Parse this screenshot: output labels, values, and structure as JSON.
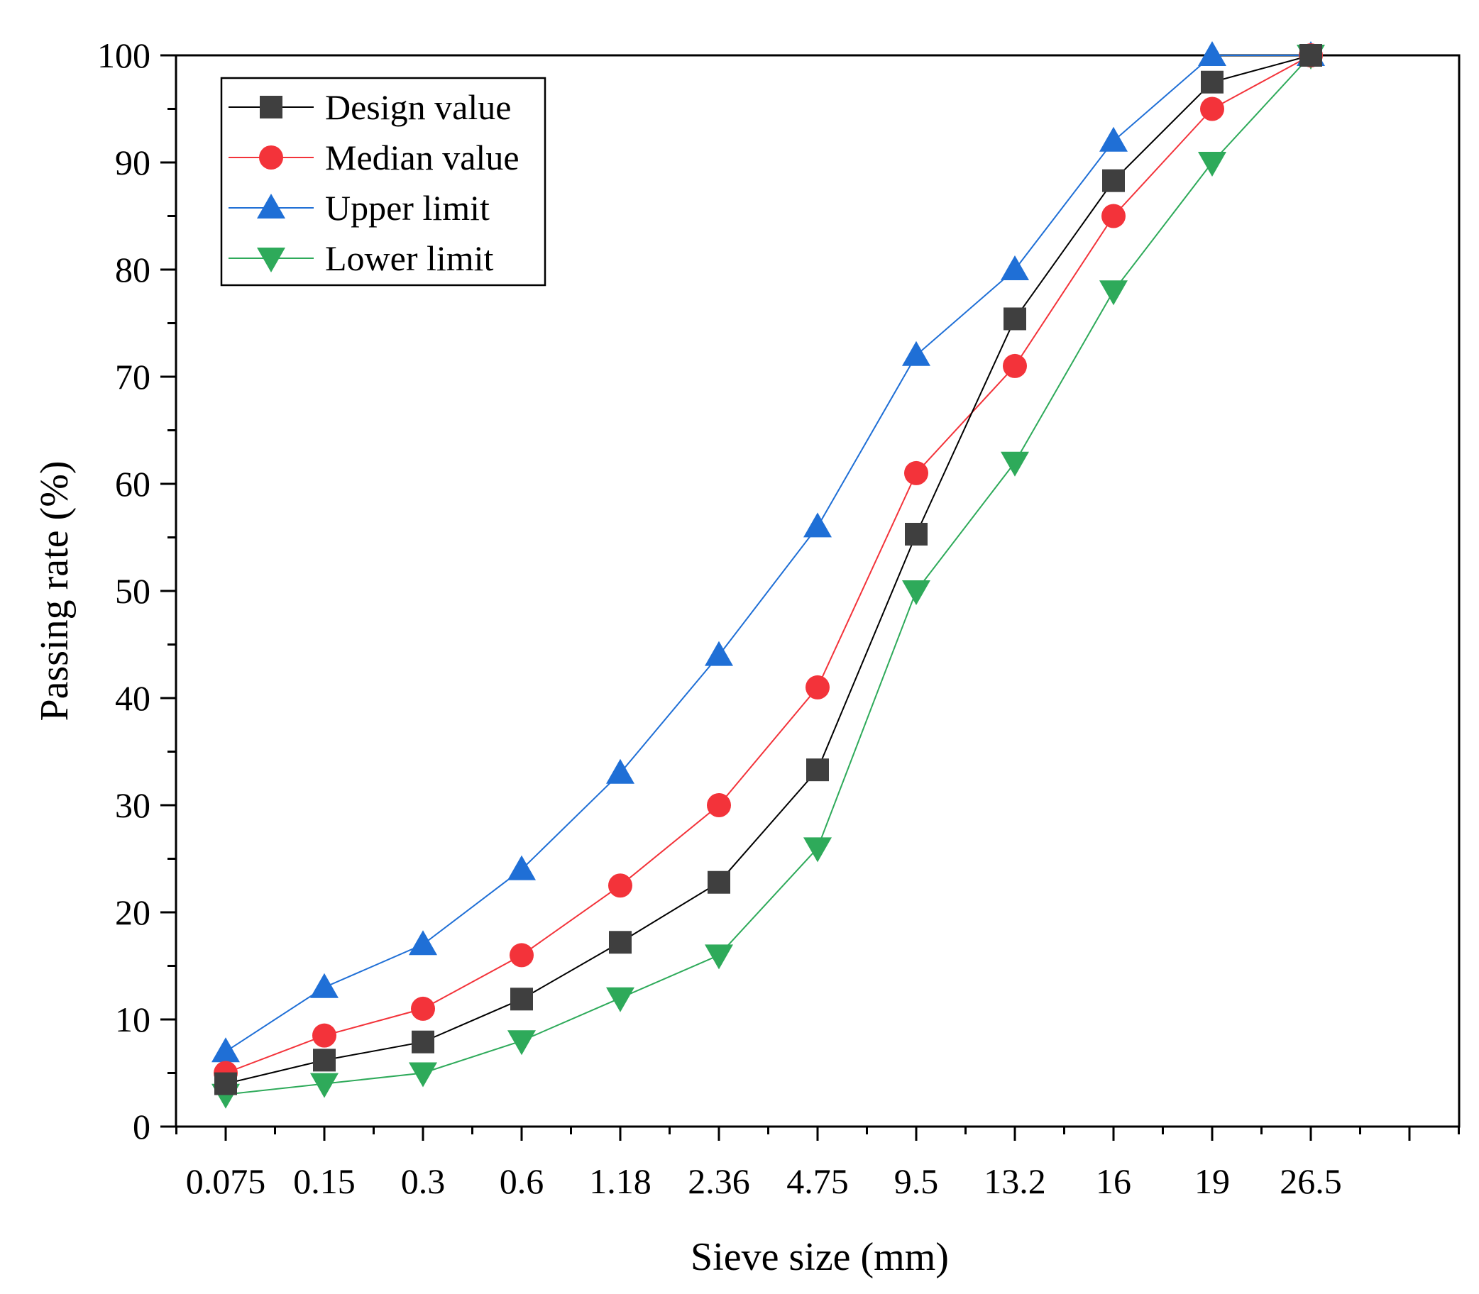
{
  "chart_data": {
    "type": "line",
    "title": "",
    "xlabel": "Sieve size (mm)",
    "ylabel": "Passing rate (%)",
    "categories": [
      "0.075",
      "0.15",
      "0.3",
      "0.6",
      "1.18",
      "2.36",
      "4.75",
      "9.5",
      "13.2",
      "16",
      "19",
      "26.5"
    ],
    "ylim": [
      0,
      100
    ],
    "yticks": [
      0,
      10,
      20,
      30,
      40,
      50,
      60,
      70,
      80,
      90,
      100
    ],
    "grid": false,
    "legend_position": "top-left",
    "series": [
      {
        "name": "Design value",
        "marker": "square",
        "color": "#3f3f3f",
        "line_color": "#000000",
        "values": [
          4,
          6.2,
          7.9,
          11.9,
          17.2,
          22.8,
          33.3,
          55.3,
          75.4,
          88.3,
          97.5,
          100
        ]
      },
      {
        "name": "Median value",
        "marker": "circle",
        "color": "#f3333a",
        "line_color": "#f3333a",
        "values": [
          5,
          8.5,
          11,
          16,
          22.5,
          30,
          41,
          61,
          71,
          85,
          95,
          100
        ]
      },
      {
        "name": "Upper limit",
        "marker": "triangle-up",
        "color": "#1f6fd6",
        "line_color": "#1f6fd6",
        "values": [
          7,
          13,
          17,
          24,
          33,
          44,
          56,
          72,
          80,
          92,
          100,
          100
        ]
      },
      {
        "name": "Lower limit",
        "marker": "triangle-down",
        "color": "#2eaa5a",
        "line_color": "#2eaa5a",
        "values": [
          3,
          4,
          5,
          8,
          12,
          16,
          26,
          50,
          62,
          78,
          90,
          100
        ]
      }
    ]
  }
}
